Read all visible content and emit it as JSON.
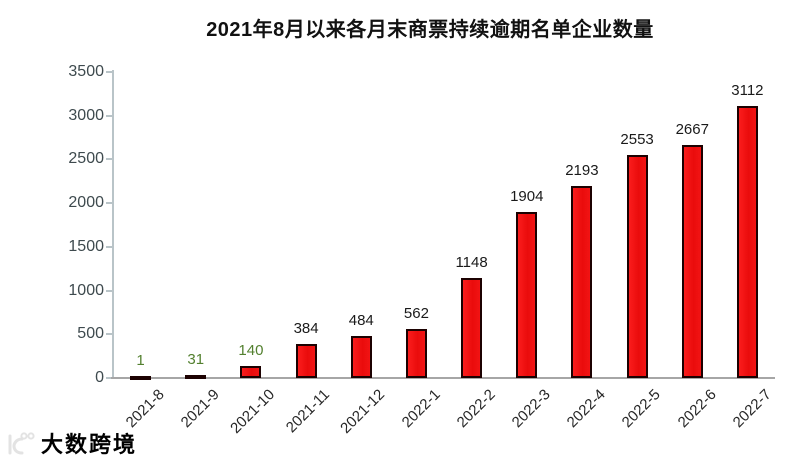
{
  "chart_data": {
    "type": "bar",
    "title": "2021年8月以来各月末商票持续逾期名单企业数量",
    "categories": [
      "2021-8",
      "2021-9",
      "2021-10",
      "2021-11",
      "2021-12",
      "2022-1",
      "2022-2",
      "2022-3",
      "2022-4",
      "2022-5",
      "2022-6",
      "2022-7"
    ],
    "values": [
      1,
      31,
      140,
      384,
      484,
      562,
      1148,
      1904,
      2193,
      2553,
      2667,
      3112
    ],
    "xlabel": "",
    "ylabel": "",
    "ylim": [
      0,
      3500
    ],
    "yticks": [
      0,
      500,
      1000,
      1500,
      2000,
      2500,
      3000,
      3500
    ],
    "grid": false,
    "legend": null,
    "value_labels_shown": true,
    "highlight_value_labels": {
      "indices": [
        0,
        1,
        2
      ],
      "color": "#53802F"
    }
  },
  "colors": {
    "background": "#FFFFFF",
    "title_text": "#111111",
    "bar_fill": "#ED0E0E",
    "bar_border": "#1C0101",
    "value_label": "#1A1A1A",
    "axis_line": "#B9C4C8",
    "baseline": "#A6A6A6",
    "ytick_label": "#3E4A4E",
    "xtick_label": "#262626",
    "watermark": "#E3E3E3"
  },
  "watermark": {
    "text": "大数跨境"
  }
}
